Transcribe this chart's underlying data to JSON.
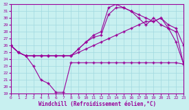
{
  "xlabel": "Windchill (Refroidissement éolien,°C)",
  "xlim": [
    0,
    23
  ],
  "ylim": [
    19,
    32
  ],
  "yticks": [
    19,
    20,
    21,
    22,
    23,
    24,
    25,
    26,
    27,
    28,
    29,
    30,
    31,
    32
  ],
  "xticks": [
    0,
    1,
    2,
    3,
    4,
    5,
    6,
    7,
    8,
    9,
    10,
    11,
    12,
    13,
    14,
    15,
    16,
    17,
    18,
    19,
    20,
    21,
    22,
    23
  ],
  "bg_color": "#c8f0f0",
  "grid_color": "#a0d8e0",
  "line_color": "#990099",
  "line1_x": [
    0,
    1,
    2,
    3,
    4,
    5,
    6,
    7,
    8,
    9,
    10,
    11,
    12,
    13,
    14,
    15,
    16,
    17,
    18,
    19,
    20,
    21,
    22,
    23
  ],
  "line1_y": [
    26.0,
    25.0,
    24.5,
    23.0,
    21.0,
    20.5,
    19.2,
    19.2,
    23.5,
    23.5,
    23.5,
    23.5,
    23.5,
    23.5,
    23.5,
    23.5,
    23.5,
    23.5,
    23.5,
    23.5,
    23.5,
    23.5,
    23.5,
    23.3
  ],
  "line2_x": [
    0,
    1,
    2,
    3,
    4,
    5,
    6,
    7,
    8,
    9,
    10,
    11,
    12,
    13,
    14,
    15,
    16,
    17,
    18,
    19,
    20,
    21,
    22,
    23
  ],
  "line2_y": [
    26.0,
    25.0,
    24.5,
    24.5,
    24.5,
    24.5,
    24.5,
    24.5,
    24.5,
    25.0,
    25.5,
    26.0,
    26.5,
    27.0,
    27.5,
    28.0,
    28.5,
    29.0,
    29.5,
    29.5,
    30.0,
    29.0,
    28.5,
    26.0
  ],
  "line3_x": [
    0,
    1,
    2,
    3,
    4,
    5,
    6,
    7,
    8,
    9,
    10,
    11,
    12,
    13,
    14,
    15,
    16,
    17,
    18,
    19,
    20,
    21,
    22,
    23
  ],
  "line3_y": [
    26.0,
    25.0,
    24.5,
    24.5,
    24.5,
    24.5,
    24.5,
    24.5,
    24.5,
    25.5,
    26.5,
    27.2,
    27.5,
    30.5,
    31.5,
    31.5,
    31.0,
    30.5,
    30.0,
    29.5,
    30.0,
    28.5,
    26.5,
    23.3
  ],
  "line4_x": [
    0,
    1,
    2,
    3,
    4,
    5,
    6,
    7,
    8,
    9,
    10,
    11,
    12,
    13,
    14,
    15,
    16,
    17,
    18,
    19,
    20,
    21,
    22,
    23
  ],
  "line4_y": [
    26.0,
    25.0,
    24.5,
    24.5,
    24.5,
    24.5,
    24.5,
    24.5,
    24.5,
    25.5,
    26.5,
    27.5,
    28.0,
    31.5,
    32.0,
    31.5,
    31.0,
    30.0,
    29.0,
    30.0,
    29.0,
    28.5,
    28.0,
    23.3
  ]
}
